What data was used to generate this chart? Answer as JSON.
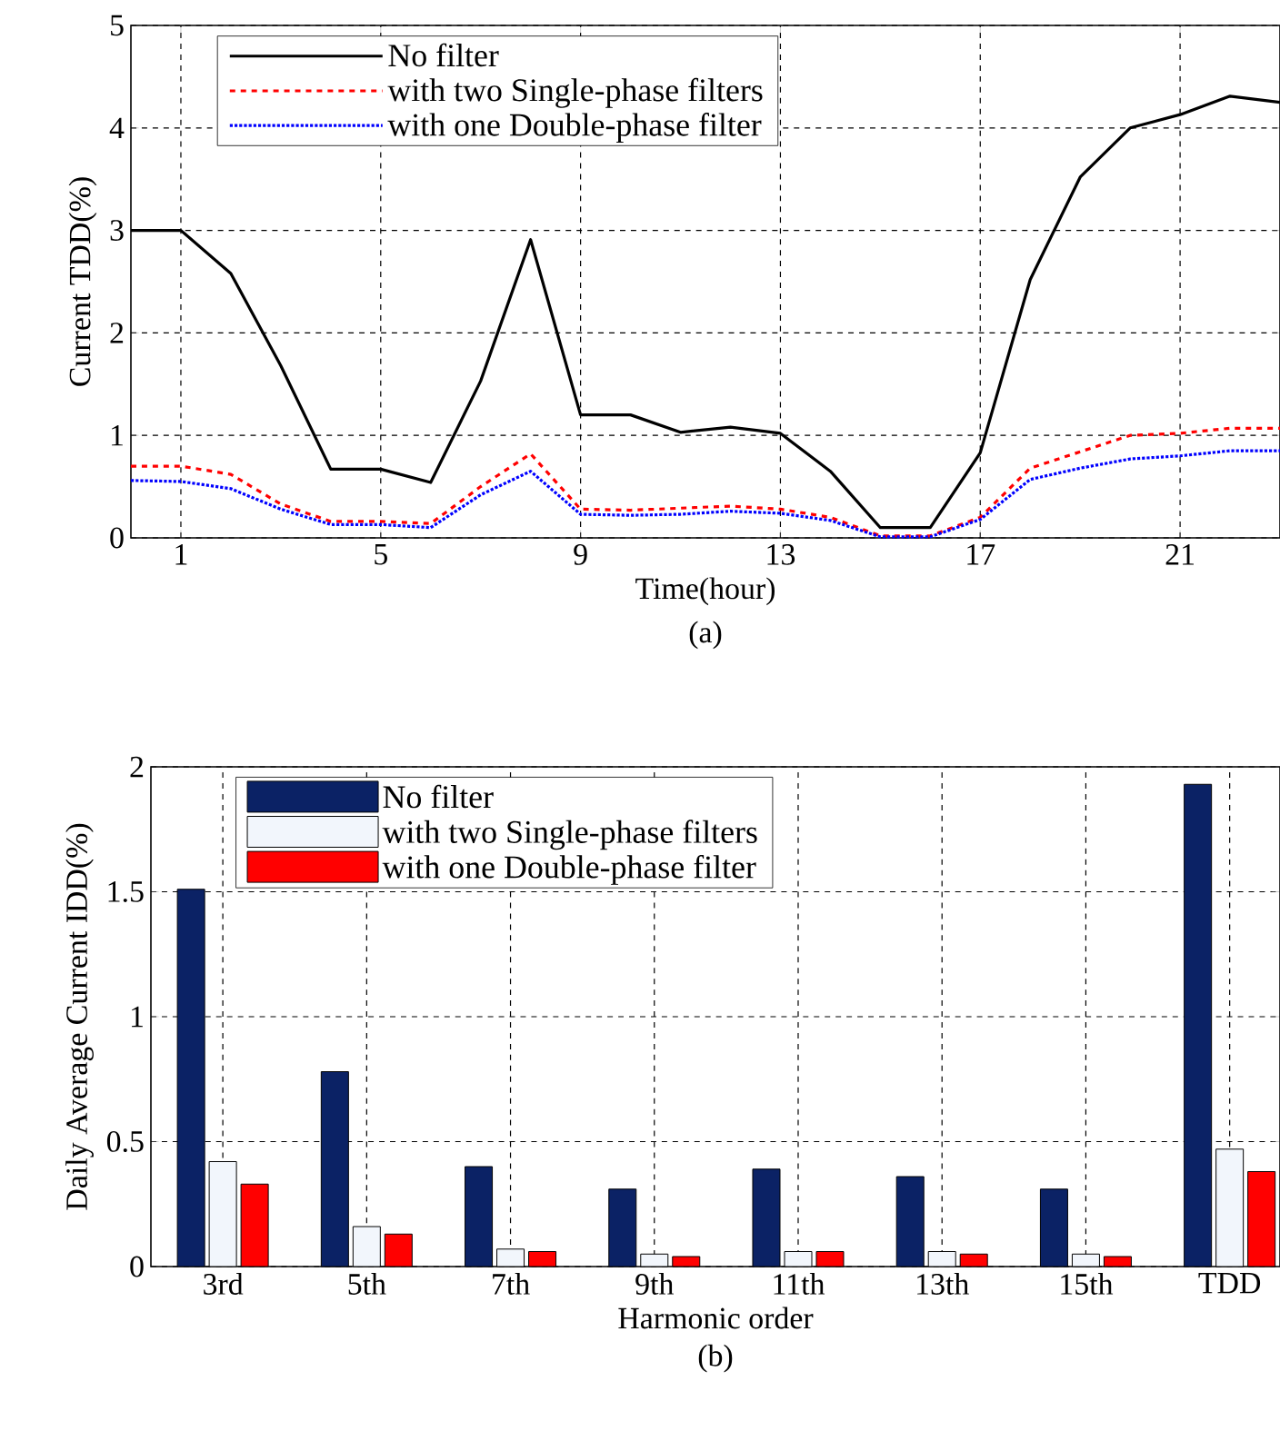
{
  "chart_data": [
    {
      "type": "line",
      "xlabel": "Time(hour)",
      "ylabel": "Current TDD(%)",
      "annotations": [
        "(a)"
      ],
      "x": [
        0,
        1,
        2,
        3,
        4,
        5,
        6,
        7,
        8,
        9,
        10,
        11,
        12,
        13,
        14,
        15,
        16,
        17,
        18,
        19,
        20,
        21,
        22,
        23
      ],
      "xlim": [
        0,
        23
      ],
      "ylim": [
        0,
        5
      ],
      "xticks": [
        1,
        5,
        9,
        13,
        17,
        21
      ],
      "yticks": [
        0,
        1,
        2,
        3,
        4,
        5
      ],
      "grid": true,
      "legend": "top left",
      "series": [
        {
          "name": "No filter",
          "color": "#000000",
          "line_style": "solid",
          "values": [
            3.0,
            3.0,
            2.58,
            1.68,
            0.67,
            0.67,
            0.54,
            1.53,
            2.91,
            1.2,
            1.2,
            1.03,
            1.08,
            1.02,
            0.65,
            0.1,
            0.1,
            0.83,
            2.52,
            3.52,
            4.0,
            4.13,
            4.31,
            4.25
          ]
        },
        {
          "name": "with two Single-phase filters",
          "color": "#ff0000",
          "line_style": "dashed",
          "values": [
            0.7,
            0.7,
            0.62,
            0.33,
            0.16,
            0.16,
            0.14,
            0.5,
            0.82,
            0.28,
            0.27,
            0.29,
            0.31,
            0.28,
            0.2,
            0.02,
            0.02,
            0.2,
            0.68,
            0.84,
            1.0,
            1.02,
            1.07,
            1.07
          ]
        },
        {
          "name": "with one Double-phase filter",
          "color": "#0000ff",
          "line_style": "dotted",
          "values": [
            0.56,
            0.55,
            0.48,
            0.28,
            0.13,
            0.13,
            0.1,
            0.42,
            0.65,
            0.23,
            0.22,
            0.23,
            0.26,
            0.24,
            0.17,
            0.01,
            0.01,
            0.18,
            0.57,
            0.68,
            0.77,
            0.8,
            0.85,
            0.85
          ]
        }
      ]
    },
    {
      "type": "bar",
      "xlabel": "Harmonic order",
      "ylabel": "Daily Average Current IDD(%)",
      "annotations": [
        "(b)"
      ],
      "categories": [
        "3rd",
        "5th",
        "7th",
        "9th",
        "11th",
        "13th",
        "15th",
        "TDD"
      ],
      "ylim": [
        0,
        2
      ],
      "yticks": [
        0,
        0.5,
        1,
        1.5,
        2
      ],
      "grid": true,
      "legend": "top left",
      "series": [
        {
          "name": "No filter",
          "color": "#0b2265",
          "values": [
            1.51,
            0.78,
            0.4,
            0.31,
            0.39,
            0.36,
            0.31,
            1.93
          ]
        },
        {
          "name": "with two Single-phase filters",
          "color": "#f2f6fc",
          "values": [
            0.42,
            0.16,
            0.07,
            0.05,
            0.06,
            0.06,
            0.05,
            0.47
          ]
        },
        {
          "name": "with one Double-phase filter",
          "color": "#ff0000",
          "values": [
            0.33,
            0.13,
            0.06,
            0.04,
            0.06,
            0.05,
            0.04,
            0.38
          ]
        }
      ]
    }
  ]
}
